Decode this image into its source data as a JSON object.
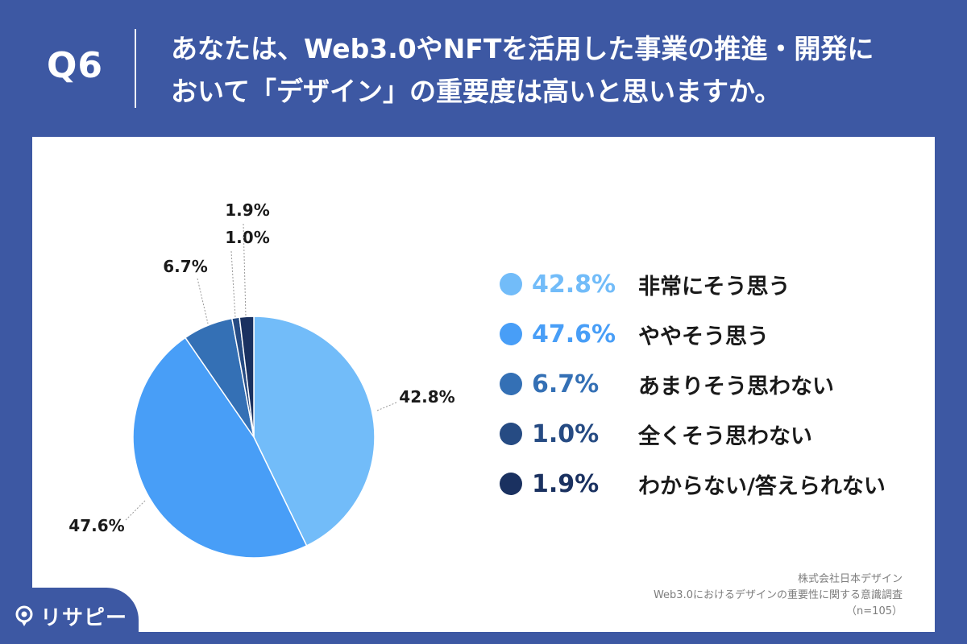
{
  "header": {
    "question_no": "Q6",
    "question_line1": "あなたは、Web3.0やNFTを活用した事業の推進・開発に",
    "question_line2": "おいて「デザイン」の重要度は高いと思いますか。"
  },
  "chart_data": {
    "type": "pie",
    "title": "",
    "unit": "%",
    "start_angle_deg": 0,
    "direction": "clockwise",
    "slices": [
      {
        "label": "非常にそう思う",
        "value": 42.8,
        "display": "42.8%",
        "color": "#72bcf9"
      },
      {
        "label": "ややそう思う",
        "value": 47.6,
        "display": "47.6%",
        "color": "#489ef7"
      },
      {
        "label": "あまりそう思わない",
        "value": 6.7,
        "display": "6.7%",
        "color": "#3470b5"
      },
      {
        "label": "全くそう思わない",
        "value": 1.0,
        "display": "1.0%",
        "color": "#264b83"
      },
      {
        "label": "わからない/答えられない",
        "value": 1.9,
        "display": "1.9%",
        "color": "#1a3160"
      }
    ],
    "legend_position": "right"
  },
  "source": {
    "company": "株式会社日本デザイン",
    "survey": "Web3.0におけるデザインの重要性に関する意識調査",
    "sample": "（n=105）"
  },
  "logo": {
    "text": "リサピー",
    "icon": "pin-icon"
  },
  "colors": {
    "brand": "#3d58a3",
    "panel": "#ffffff"
  }
}
